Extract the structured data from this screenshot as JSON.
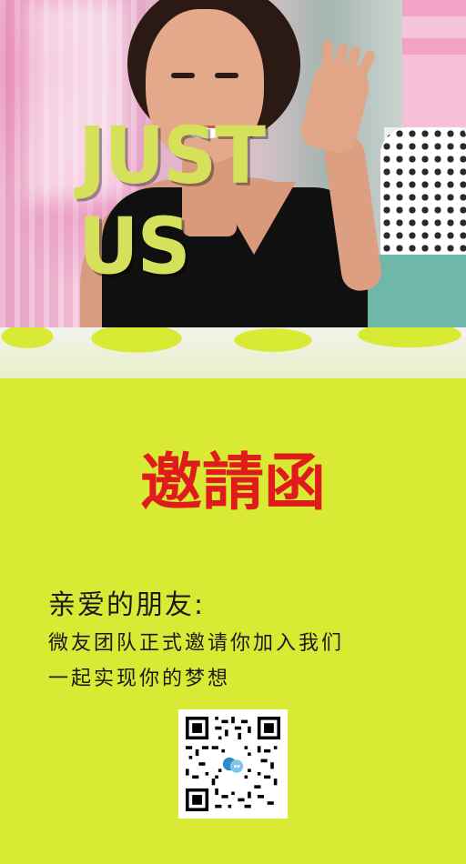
{
  "hero": {
    "brand_text": "JUST US"
  },
  "card": {
    "title": "邀請函"
  },
  "message": {
    "greeting": "亲爱的朋友:",
    "line1": "微友团队正式邀请你加入我们",
    "line2": "一起实现你的梦想"
  },
  "qr": {
    "icon": "chat-bubbles-icon"
  },
  "colors": {
    "background": "#d9ea34",
    "title": "#e01b1b",
    "text": "#1a1a1a",
    "brand": "#d6e15b"
  }
}
